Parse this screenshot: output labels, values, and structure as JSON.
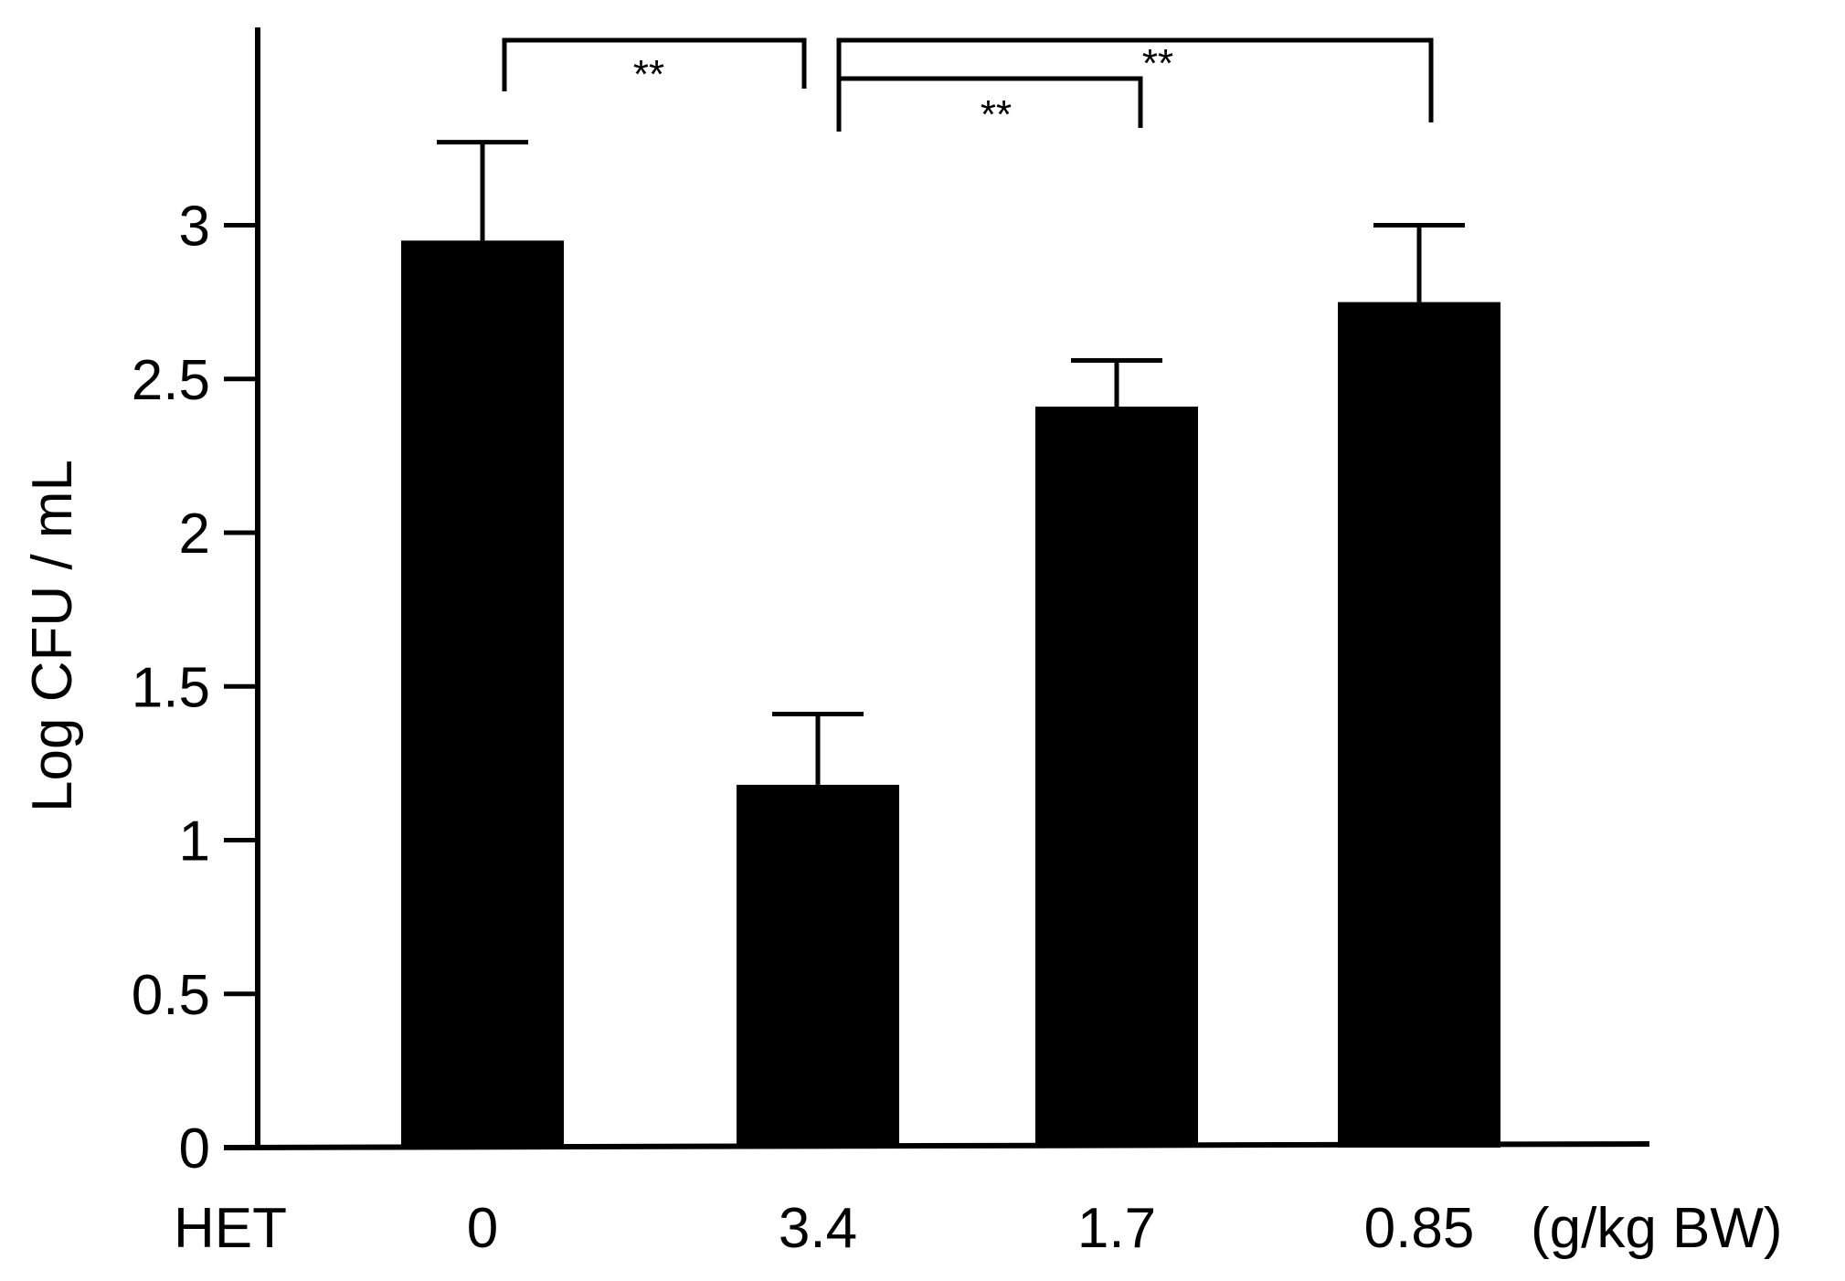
{
  "chart_data": {
    "type": "bar",
    "categories": [
      "0",
      "3.4",
      "1.7",
      "0.85"
    ],
    "category_axis_prefix": "HET",
    "category_axis_unit": "(g/kg BW)",
    "values": [
      2.95,
      1.18,
      2.41,
      2.75
    ],
    "errors": [
      0.32,
      0.23,
      0.15,
      0.25
    ],
    "title": "",
    "xlabel": "",
    "ylabel": "Log CFU / mL",
    "ylim": [
      0,
      3.5
    ],
    "yticks": [
      0,
      0.5,
      1,
      1.5,
      2,
      2.5,
      3
    ],
    "ytick_labels": [
      "0",
      "0.5",
      "1",
      "1.5",
      "2",
      "2.5",
      "3"
    ],
    "grid": false,
    "legend": "none",
    "bar_color": "#000000",
    "significance": [
      {
        "from": 0,
        "to": 1,
        "label": "**"
      },
      {
        "from": 1,
        "to": 2,
        "label": "**"
      },
      {
        "from": 1,
        "to": 3,
        "label": "**"
      }
    ]
  }
}
